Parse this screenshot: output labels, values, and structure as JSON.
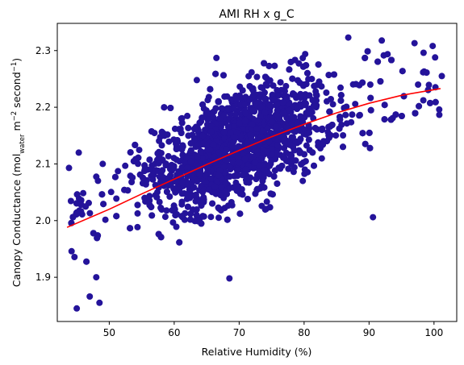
{
  "chart_data": {
    "type": "scatter",
    "title": "AMI RH x g_C",
    "xlabel": "Relative Humidity (%)",
    "ylabel_main": "Canopy Conductance (mol",
    "ylabel_sub": "water",
    "ylabel_mid": " m",
    "ylabel_sup1": "−2",
    "ylabel_mid2": " second",
    "ylabel_sup2": "−1",
    "ylabel_end": ")",
    "xlim": [
      42.0,
      103.5
    ],
    "ylim": [
      1.822,
      2.348
    ],
    "xticks": [
      50,
      60,
      70,
      80,
      90,
      100
    ],
    "yticks": [
      1.9,
      2.0,
      2.1,
      2.2,
      2.3
    ],
    "xtick_labels": [
      "50",
      "60",
      "70",
      "80",
      "90",
      "100"
    ],
    "ytick_labels": [
      "1.9",
      "2.0",
      "2.1",
      "2.2",
      "2.3"
    ],
    "point_color": "#24139a",
    "fit_color": "#ff0000",
    "scatter_cloud": {
      "x_range": [
        43.5,
        101.2
      ],
      "y_center_at_x": [
        [
          45,
          2.0
        ],
        [
          55,
          2.06
        ],
        [
          65,
          2.11
        ],
        [
          75,
          2.16
        ],
        [
          85,
          2.2
        ],
        [
          95,
          2.23
        ]
      ],
      "y_spread": 0.12
    },
    "outliers": [
      [
        43.8,
        2.093
      ],
      [
        44.2,
        1.946
      ],
      [
        45.0,
        1.845
      ],
      [
        45.3,
        2.12
      ],
      [
        47.0,
        1.866
      ],
      [
        48.5,
        1.855
      ],
      [
        49.0,
        2.1
      ],
      [
        48.0,
        1.9
      ],
      [
        86.8,
        2.323
      ],
      [
        90.6,
        2.006
      ],
      [
        97.0,
        2.313
      ],
      [
        100.8,
        2.196
      ],
      [
        68.5,
        1.898
      ],
      [
        101.2,
        2.255
      ],
      [
        99.8,
        2.308
      ],
      [
        66.5,
        2.287
      ]
    ],
    "fit_line": {
      "x": [
        43.5,
        50,
        55,
        60,
        65,
        70,
        75,
        80,
        85,
        90,
        95,
        101
      ],
      "y": [
        1.988,
        2.02,
        2.047,
        2.073,
        2.099,
        2.124,
        2.148,
        2.17,
        2.19,
        2.207,
        2.221,
        2.233
      ]
    }
  }
}
